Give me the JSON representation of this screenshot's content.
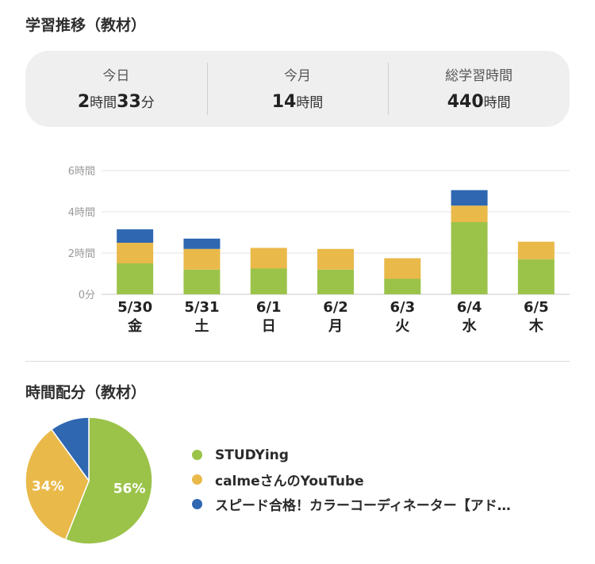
{
  "trend_title": "学習推移（教材）",
  "summary": [
    {
      "label": "今日",
      "parts": [
        {
          "t": "2",
          "n": true
        },
        {
          "t": "時間",
          "n": false
        },
        {
          "t": "33",
          "n": true
        },
        {
          "t": "分",
          "n": false
        }
      ]
    },
    {
      "label": "今月",
      "parts": [
        {
          "t": "14",
          "n": true
        },
        {
          "t": "時間",
          "n": false
        }
      ]
    },
    {
      "label": "総学習時間",
      "parts": [
        {
          "t": "440",
          "n": true
        },
        {
          "t": "時間",
          "n": false
        }
      ]
    }
  ],
  "dist_title": "時間配分（教材）",
  "colors": {
    "green": "#9bc34a",
    "yellow": "#e9b94a",
    "blue": "#2f67b1"
  },
  "chart_data": [
    {
      "type": "bar",
      "stacked": true,
      "title": "学習推移（教材）",
      "unit": "hours",
      "categories": [
        "5/30",
        "5/31",
        "6/1",
        "6/2",
        "6/3",
        "6/4",
        "6/5"
      ],
      "weekdays": [
        "金",
        "土",
        "日",
        "月",
        "火",
        "水",
        "木"
      ],
      "y_ticks": [
        {
          "value": 0,
          "label": "0分"
        },
        {
          "value": 2,
          "label": "2時間"
        },
        {
          "value": 4,
          "label": "4時間"
        },
        {
          "value": 6,
          "label": "6時間"
        }
      ],
      "ylim": [
        0,
        6
      ],
      "grid": true,
      "series": [
        {
          "name": "STUDYing",
          "color": "#9bc34a",
          "values": [
            1.5,
            1.2,
            1.25,
            1.2,
            0.75,
            3.5,
            1.7
          ]
        },
        {
          "name": "calmeさんのYouTube",
          "color": "#e9b94a",
          "values": [
            1.0,
            1.0,
            1.0,
            1.0,
            1.0,
            0.8,
            0.85
          ]
        },
        {
          "name": "スピード合格！カラーコーディネーター【アド…",
          "color": "#2f67b1",
          "values": [
            0.65,
            0.5,
            0,
            0,
            0,
            0.75,
            0
          ]
        }
      ]
    },
    {
      "type": "pie",
      "title": "時間配分（教材）",
      "slices": [
        {
          "name": "STUDYing",
          "value": 56,
          "label": "56%",
          "color": "#9bc34a"
        },
        {
          "name": "calmeさんのYouTube",
          "value": 34,
          "label": "34%",
          "color": "#e9b94a"
        },
        {
          "name": "スピード合格！カラーコーディネーター【アド…",
          "value": 10,
          "label": "",
          "color": "#2f67b1"
        }
      ],
      "legend": "right"
    }
  ]
}
